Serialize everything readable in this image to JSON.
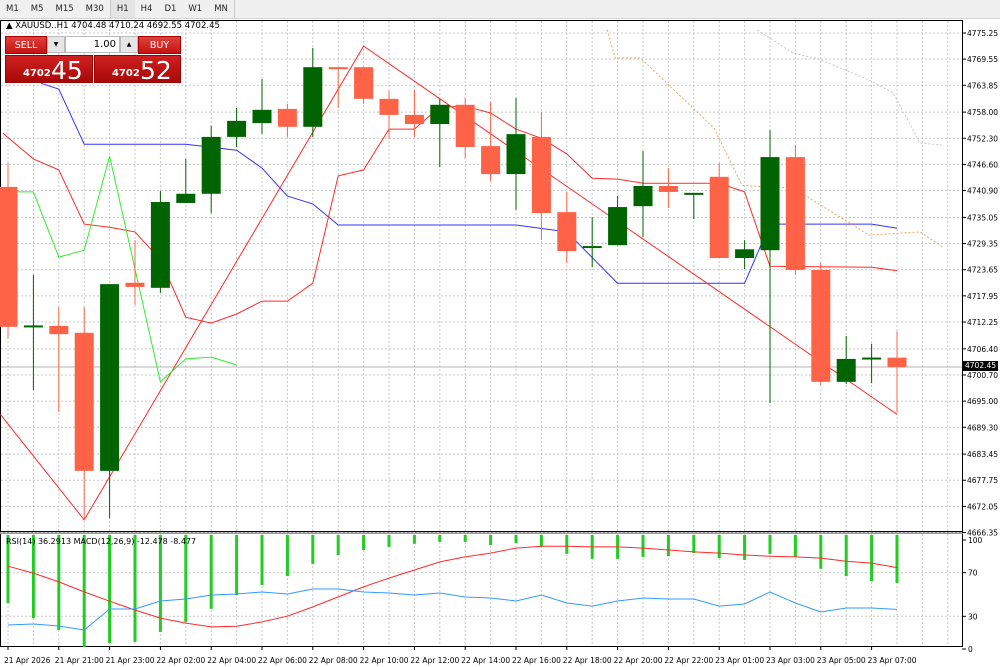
{
  "toolbar": {
    "timeframes_a": [
      "M1",
      "M5",
      "M15",
      "M30"
    ],
    "timeframes_b": [
      "H1",
      "H4",
      "D1",
      "W1",
      "MN"
    ],
    "active": "H1"
  },
  "header": {
    "symbol": "XAUUSD..H1",
    "ohlc": "4704.48 4710.24 4692.55 4702.45"
  },
  "trade_panel": {
    "sell_label": "SELL",
    "buy_label": "BUY",
    "lot": "1.00",
    "sell_price_small": "4702",
    "sell_price_big": "45",
    "buy_price_small": "4702",
    "buy_price_big": "52",
    "down_icon": "triangle-down",
    "up_icon": "triangle-up"
  },
  "indicator_label": "RSI(14) 36.2913  MACD(12,26,9) -12.478 -8.477",
  "current_price": "4702.45",
  "colors": {
    "bull": "#006400",
    "bear": "#ff6347",
    "kijun": "#3333ff",
    "red_line": "#ff2a2a",
    "chikou": "#33ee33",
    "rsi": "#3399ff",
    "macd_hist": "#22cc22",
    "signal": "#ff2a2a",
    "span_a": "#f4a460",
    "span_b": "#c8c8c8"
  },
  "chart_data": {
    "type": "candlestick",
    "symbol": "XAUUSD",
    "timeframe": "H1",
    "price_ticks": [
      "4775.25",
      "4769.55",
      "4763.85",
      "4758.00",
      "4752.30",
      "4746.60",
      "4740.90",
      "4735.05",
      "4729.35",
      "4723.65",
      "4717.95",
      "4712.25",
      "4706.40",
      "4700.70",
      "4695.00",
      "4689.30",
      "4683.45",
      "4677.75",
      "4672.05",
      "4666.35"
    ],
    "ylim": [
      4666.35,
      4775.25
    ],
    "time_labels": [
      "21 Apr 2026",
      "21 Apr 21:00",
      "21 Apr 23:00",
      "22 Apr 02:00",
      "22 Apr 04:00",
      "22 Apr 06:00",
      "22 Apr 08:00",
      "22 Apr 10:00",
      "22 Apr 12:00",
      "22 Apr 14:00",
      "22 Apr 16:00",
      "22 Apr 18:00",
      "22 Apr 20:00",
      "22 Apr 22:00",
      "23 Apr 01:00",
      "23 Apr 03:00",
      "23 Apr 05:00",
      "23 Apr 07:00"
    ],
    "ohlc": [
      [
        4741.7,
        4746.9,
        4708.8,
        4711.2
      ],
      [
        4711.2,
        4722.5,
        4697.4,
        4711.5
      ],
      [
        4711.4,
        4715.5,
        4692.6,
        4709.6
      ],
      [
        4709.9,
        4715.5,
        4669.1,
        4679.8
      ],
      [
        4679.8,
        4720.5,
        4669.5,
        4720.5
      ],
      [
        4720.8,
        4730.1,
        4716.0,
        4719.9
      ],
      [
        4719.7,
        4740.8,
        4718.6,
        4738.4
      ],
      [
        4738.2,
        4747.8,
        4738.2,
        4740.2
      ],
      [
        4740.2,
        4755.0,
        4736.0,
        4752.6
      ],
      [
        4752.6,
        4758.9,
        4750.4,
        4756.1
      ],
      [
        4755.6,
        4765.2,
        4753.2,
        4758.5
      ],
      [
        4758.7,
        4759.8,
        4752.6,
        4754.8
      ],
      [
        4754.8,
        4772.0,
        4752.6,
        4767.8
      ],
      [
        4767.8,
        4767.8,
        4758.9,
        4767.6
      ],
      [
        4767.8,
        4767.8,
        4759.8,
        4760.9
      ],
      [
        4760.9,
        4762.6,
        4752.1,
        4757.4
      ],
      [
        4757.4,
        4762.8,
        4752.6,
        4755.4
      ],
      [
        4755.4,
        4760.9,
        4746.0,
        4759.6
      ],
      [
        4759.6,
        4761.1,
        4748.0,
        4750.4
      ],
      [
        4750.6,
        4760.2,
        4743.0,
        4744.5
      ],
      [
        4744.5,
        4761.1,
        4736.7,
        4753.2
      ],
      [
        4752.6,
        4758.0,
        4730.1,
        4736.0
      ],
      [
        4736.2,
        4740.6,
        4725.1,
        4727.7
      ],
      [
        4728.6,
        4735.1,
        4724.2,
        4728.8
      ],
      [
        4729.0,
        4739.7,
        4729.0,
        4737.3
      ],
      [
        4737.5,
        4749.5,
        4730.8,
        4741.9
      ],
      [
        4741.9,
        4745.8,
        4737.1,
        4740.6
      ],
      [
        4740.3,
        4740.4,
        4734.7,
        4740.4
      ],
      [
        4743.9,
        4746.9,
        4726.2,
        4726.2
      ],
      [
        4726.2,
        4730.1,
        4723.8,
        4728.1
      ],
      [
        4727.9,
        4754.1,
        4694.6,
        4748.2
      ],
      [
        4748.2,
        4750.8,
        4722.5,
        4723.6
      ],
      [
        4723.6,
        4725.1,
        4698.5,
        4699.2
      ],
      [
        4699.2,
        4709.2,
        4698.7,
        4704.2
      ],
      [
        4704.3,
        4707.5,
        4698.9,
        4704.5
      ],
      [
        4704.48,
        4710.24,
        4692.55,
        4702.45
      ]
    ],
    "lines": [
      {
        "name": "kijun",
        "color_key": "kijun",
        "dashed": false,
        "points": [
          [
            1.3,
            4764.3
          ],
          [
            2,
            4763.0
          ],
          [
            3,
            4751.0
          ],
          [
            7,
            4751.0
          ],
          [
            9,
            4749.7
          ],
          [
            10,
            4745.8
          ],
          [
            11,
            4739.7
          ],
          [
            12,
            4738.0
          ],
          [
            13,
            4733.4
          ],
          [
            20,
            4733.4
          ],
          [
            22,
            4731.9
          ],
          [
            24,
            4720.7
          ],
          [
            29,
            4720.7
          ],
          [
            30,
            4733.6
          ],
          [
            34,
            4733.6
          ],
          [
            35,
            4732.7
          ]
        ]
      },
      {
        "name": "tenkan",
        "color_key": "red_line",
        "dashed": false,
        "points": [
          [
            -0.2,
            4753.4
          ],
          [
            1,
            4747.8
          ],
          [
            2,
            4745.4
          ],
          [
            3,
            4733.6
          ],
          [
            4,
            4732.9
          ],
          [
            5,
            4731.9
          ],
          [
            6,
            4725.8
          ],
          [
            7,
            4713.3
          ],
          [
            8,
            4712.0
          ],
          [
            9,
            4714.0
          ],
          [
            10,
            4716.8
          ],
          [
            11,
            4716.8
          ],
          [
            12,
            4720.7
          ],
          [
            13,
            4744.1
          ],
          [
            14,
            4745.4
          ],
          [
            15,
            4754.3
          ],
          [
            16,
            4754.3
          ],
          [
            17,
            4759.1
          ],
          [
            18,
            4759.3
          ],
          [
            19,
            4757.8
          ],
          [
            20,
            4754.3
          ],
          [
            21,
            4752.3
          ],
          [
            22,
            4748.9
          ],
          [
            23,
            4743.6
          ],
          [
            24,
            4743.4
          ],
          [
            25,
            4742.5
          ],
          [
            28,
            4742.5
          ],
          [
            29,
            4740.6
          ],
          [
            30,
            4724.4
          ],
          [
            34,
            4724.2
          ],
          [
            35,
            4723.4
          ]
        ]
      },
      {
        "name": "zigzag",
        "color_key": "red_line",
        "dashed": false,
        "points": [
          [
            -0.3,
            4692.1
          ],
          [
            3,
            4669.1
          ],
          [
            14,
            4772.4
          ],
          [
            35,
            4692.1
          ]
        ]
      },
      {
        "name": "chikou",
        "color_key": "chikou",
        "dashed": false,
        "points": [
          [
            -0.2,
            4740.6
          ],
          [
            1,
            4740.6
          ],
          [
            2,
            4726.4
          ],
          [
            3,
            4727.9
          ],
          [
            4,
            4748.4
          ],
          [
            6,
            4699.2
          ],
          [
            7,
            4704.2
          ],
          [
            8,
            4704.6
          ],
          [
            9,
            4702.9
          ]
        ]
      },
      {
        "name": "senkou-a",
        "color_key": "span_a",
        "dashed": true,
        "points": [
          [
            23.6,
            4775.9
          ],
          [
            23.9,
            4769.8
          ],
          [
            24.9,
            4769.8
          ],
          [
            27.8,
            4754.5
          ],
          [
            28.9,
            4742.0
          ],
          [
            29.9,
            4741.7
          ],
          [
            30.9,
            4741.5
          ],
          [
            33.9,
            4731.2
          ],
          [
            35.9,
            4731.9
          ],
          [
            36.8,
            4728.6
          ]
        ]
      },
      {
        "name": "senkou-b",
        "color_key": "span_b",
        "dashed": true,
        "points": [
          [
            29.5,
            4775.9
          ],
          [
            30.9,
            4770.9
          ],
          [
            31.9,
            4769.6
          ],
          [
            33.9,
            4765.0
          ],
          [
            34.85,
            4762.2
          ],
          [
            35.9,
            4751.3
          ],
          [
            36.8,
            4750.8
          ]
        ]
      }
    ],
    "rsi": {
      "period": 14,
      "levels": [
        "100",
        "70",
        "30",
        "0"
      ],
      "values": [
        22.0,
        22.9,
        21.1,
        17.4,
        36.7,
        36.7,
        44.0,
        45.9,
        49.5,
        50.5,
        52.3,
        50.5,
        55.0,
        55.0,
        52.3,
        51.4,
        49.5,
        51.4,
        47.7,
        46.8,
        44.0,
        49.5,
        42.2,
        39.4,
        44.0,
        46.8,
        45.9,
        45.9,
        39.4,
        41.3,
        52.3,
        42.2,
        33.9,
        37.6,
        37.6,
        36.29
      ]
    },
    "macd": {
      "params": "12,26,9",
      "histogram": [
        -17.7,
        -21.6,
        -24.7,
        -29.1,
        -28.1,
        -27.8,
        -25.2,
        -22.6,
        -19.2,
        -15.6,
        -13.0,
        -10.7,
        -7.5,
        -5.2,
        -3.9,
        -3.1,
        -2.3,
        -1.8,
        -1.8,
        -2.6,
        -2.1,
        -3.1,
        -4.9,
        -6.2,
        -6.2,
        -5.7,
        -5.5,
        -4.7,
        -6.0,
        -6.5,
        -4.9,
        -5.7,
        -8.8,
        -10.7,
        -12.0,
        -12.478
      ],
      "signal": [
        -8.1,
        -9.9,
        -12.2,
        -14.8,
        -17.2,
        -19.5,
        -21.6,
        -22.9,
        -23.9,
        -23.7,
        -22.6,
        -21.1,
        -18.7,
        -16.1,
        -13.5,
        -11.2,
        -9.1,
        -7.0,
        -5.7,
        -4.7,
        -3.4,
        -2.9,
        -2.9,
        -3.1,
        -3.1,
        -3.4,
        -3.9,
        -4.4,
        -4.7,
        -5.2,
        -5.5,
        -5.7,
        -6.0,
        -6.8,
        -7.3,
        -8.477
      ]
    }
  }
}
